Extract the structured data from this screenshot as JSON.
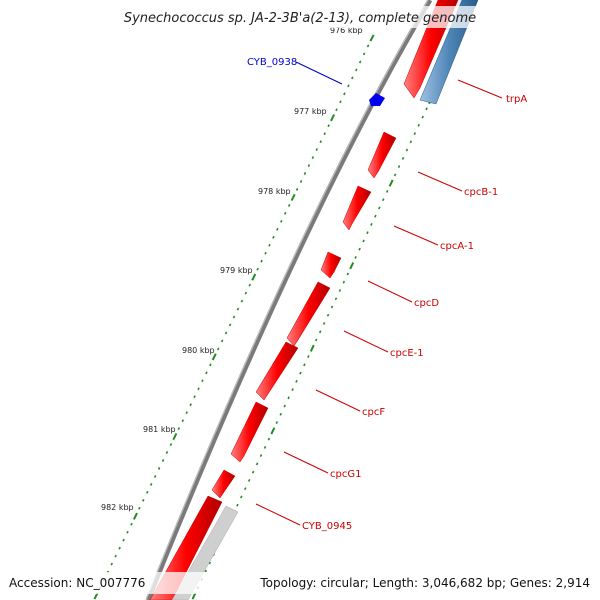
{
  "title": "Synechococcus sp. JA-2-3B'a(2-13), complete genome",
  "accession": "Accession: NC_007776",
  "summary": "Topology: circular; Length: 3,046,682 bp; Genes: 2,914",
  "colors": {
    "forward_gene": "#ff0000",
    "reverse_gene": "#4f86b8",
    "backbone": "#7a7a7a",
    "tick": "#228b22",
    "label_red": "#cc0000",
    "label_blue": "#0000cc",
    "gray_feature": "#c8c8c8"
  },
  "kbp_ticks": [
    "976 kbp",
    "977 kbp",
    "978 kbp",
    "979 kbp",
    "980 kbp",
    "981 kbp",
    "982 kbp"
  ],
  "genes": [
    {
      "name": "trpA",
      "color": "red"
    },
    {
      "name": "cpcB-1",
      "color": "red"
    },
    {
      "name": "cpcA-1",
      "color": "red"
    },
    {
      "name": "cpcD",
      "color": "red"
    },
    {
      "name": "cpcE-1",
      "color": "red"
    },
    {
      "name": "cpcF",
      "color": "red"
    },
    {
      "name": "cpcG1",
      "color": "red"
    },
    {
      "name": "CYB_0945",
      "color": "red"
    },
    {
      "name": "CYB_0938",
      "color": "blue"
    }
  ]
}
